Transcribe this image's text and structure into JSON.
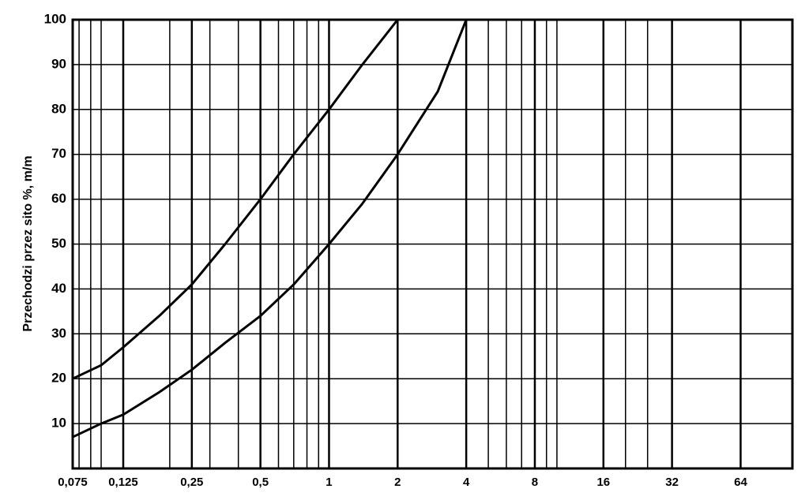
{
  "chart_data": {
    "type": "line",
    "y_label": "Przechodzi przez sito %, m/m",
    "x_scale": "log",
    "xlim": [
      0.075,
      108
    ],
    "xticks": [
      {
        "value": 0.075,
        "label": "0,075"
      },
      {
        "value": 0.125,
        "label": "0,125"
      },
      {
        "value": 0.25,
        "label": "0,25"
      },
      {
        "value": 0.5,
        "label": "0,5"
      },
      1,
      2,
      4,
      8,
      16,
      32,
      64
    ],
    "minor_xticks": [
      0.08,
      0.09,
      0.1,
      0.2,
      0.3,
      0.4,
      0.6,
      0.7,
      0.8,
      0.9,
      5,
      6,
      7,
      9,
      10,
      20,
      25
    ],
    "ylim": [
      0,
      100
    ],
    "yticks": [
      10,
      20,
      30,
      40,
      50,
      60,
      70,
      80,
      90,
      100
    ],
    "grid": true,
    "series": [
      {
        "color": "#000000",
        "x": [
          0.075,
          0.1,
          0.125,
          0.18,
          0.25,
          0.35,
          0.5,
          0.7,
          1,
          1.4,
          2
        ],
        "values": [
          20,
          23,
          27,
          34,
          41,
          50,
          60,
          70,
          80,
          90,
          100
        ]
      },
      {
        "color": "#000000",
        "x": [
          0.075,
          0.1,
          0.125,
          0.18,
          0.25,
          0.35,
          0.5,
          0.7,
          1,
          1.4,
          2,
          3,
          4
        ],
        "values": [
          7,
          10,
          12,
          17,
          22,
          28,
          34,
          41,
          50,
          59,
          70,
          84,
          100
        ]
      }
    ]
  }
}
